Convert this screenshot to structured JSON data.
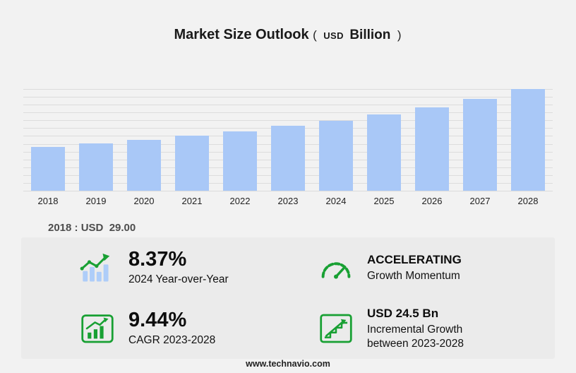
{
  "title": {
    "main": "Market Size Outlook",
    "paren_open": "(",
    "currency": "USD",
    "unit": "Billion",
    "paren_close": ")"
  },
  "chart_data": {
    "type": "bar",
    "title": "Market Size Outlook (USD Billion)",
    "categories": [
      "2018",
      "2019",
      "2020",
      "2021",
      "2022",
      "2023",
      "2024",
      "2025",
      "2026",
      "2027",
      "2028"
    ],
    "values": [
      29.0,
      31.2,
      33.8,
      36.6,
      39.6,
      43.0,
      46.6,
      50.8,
      55.5,
      60.9,
      67.5
    ],
    "xlabel": "",
    "ylabel": "",
    "ylim": [
      0,
      67.5
    ],
    "grid": true,
    "gridline_count": 14,
    "legend": "none",
    "bar_color": "#a9c8f7"
  },
  "annotation": {
    "base_year_label": "2018 : USD  29.00"
  },
  "stats": {
    "yoy": {
      "value": "8.37%",
      "label": "2024 Year-over-Year",
      "icon": "bar-chart-trend-icon"
    },
    "momentum": {
      "value": "ACCELERATING",
      "label": "Growth Momentum",
      "icon": "speedometer-icon"
    },
    "cagr": {
      "value": "9.44%",
      "label": "CAGR 2023-2028",
      "icon": "chart-growth-icon"
    },
    "incremental": {
      "value": "USD 24.5 Bn",
      "label_line1": "Incremental Growth",
      "label_line2": "between 2023-2028",
      "icon": "step-growth-icon"
    }
  },
  "footer": {
    "url": "www.technavio.com"
  },
  "colors": {
    "accent_green": "#18a033",
    "bar_blue": "#a9c8f7",
    "background": "#f2f2f2",
    "panel": "#ebebeb"
  }
}
